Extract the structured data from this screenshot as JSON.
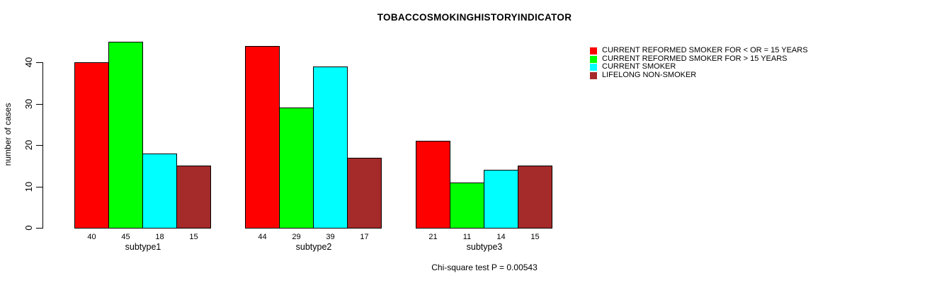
{
  "chart_data": {
    "type": "bar",
    "title": "TOBACCOSMOKINGHISTORYINDICATOR",
    "categories": [
      "subtype1",
      "subtype2",
      "subtype3"
    ],
    "series": [
      {
        "name": "CURRENT REFORMED SMOKER FOR < OR = 15 YEARS",
        "color": "#ff0000",
        "values": [
          40,
          44,
          21
        ]
      },
      {
        "name": "CURRENT REFORMED SMOKER FOR > 15 YEARS",
        "color": "#00ff00",
        "values": [
          45,
          29,
          11
        ]
      },
      {
        "name": "CURRENT SMOKER",
        "color": "#00ffff",
        "values": [
          18,
          39,
          14
        ]
      },
      {
        "name": "LIFELONG NON-SMOKER",
        "color": "#a52a2a",
        "values": [
          15,
          17,
          15
        ]
      }
    ],
    "xlabel": "",
    "ylabel": "number of cases",
    "yticks": [
      0,
      10,
      20,
      30,
      40
    ],
    "ylim": [
      0,
      45
    ],
    "grid": false,
    "legend_position": "right",
    "bar_value_labels_shown": true,
    "annotation": "Chi-square test P = 0.00543"
  },
  "colors": {
    "background": "#ffffff",
    "bar_border": "#000000",
    "axis": "#000000",
    "text": "#000000"
  }
}
